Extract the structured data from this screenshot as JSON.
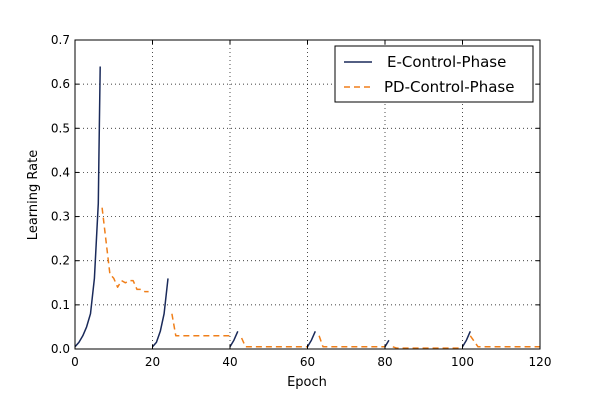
{
  "chart_data": {
    "type": "line",
    "title": "",
    "xlabel": "Epoch",
    "ylabel": "Learning Rate",
    "xlim": [
      0,
      120
    ],
    "ylim": [
      0,
      0.7
    ],
    "xticks": [
      0,
      20,
      40,
      60,
      80,
      100,
      120
    ],
    "yticks": [
      0.0,
      0.1,
      0.2,
      0.3,
      0.4,
      0.5,
      0.6,
      0.7
    ],
    "xtick_labels": [
      "0",
      "20",
      "40",
      "60",
      "80",
      "100",
      "120"
    ],
    "ytick_labels": [
      "0.0",
      "0.1",
      "0.2",
      "0.3",
      "0.4",
      "0.5",
      "0.6",
      "0.7"
    ],
    "grid": true,
    "legend_position": "top-right",
    "series": [
      {
        "name": "E-Control-Phase",
        "color": "#1a2a5a",
        "style": "solid",
        "segments": [
          [
            [
              0,
              0.005
            ],
            [
              1,
              0.015
            ],
            [
              2,
              0.03
            ],
            [
              3,
              0.05
            ],
            [
              4,
              0.08
            ],
            [
              5,
              0.16
            ],
            [
              6,
              0.33
            ],
            [
              6.2,
              0.45
            ],
            [
              6.5,
              0.64
            ]
          ],
          [
            [
              20,
              0.005
            ],
            [
              21,
              0.015
            ],
            [
              22,
              0.04
            ],
            [
              23,
              0.08
            ],
            [
              24,
              0.16
            ]
          ],
          [
            [
              40,
              0.005
            ],
            [
              41,
              0.02
            ],
            [
              42,
              0.04
            ]
          ],
          [
            [
              60,
              0.005
            ],
            [
              61,
              0.02
            ],
            [
              62,
              0.04
            ]
          ],
          [
            [
              80,
              0.005
            ],
            [
              81,
              0.02
            ]
          ],
          [
            [
              100,
              0.005
            ],
            [
              101,
              0.02
            ],
            [
              102,
              0.04
            ]
          ]
        ]
      },
      {
        "name": "PD-Control-Phase",
        "color": "#f07f1a",
        "style": "dashed",
        "segments": [
          [
            [
              7,
              0.32
            ],
            [
              9,
              0.17
            ],
            [
              10,
              0.16
            ],
            [
              11,
              0.14
            ],
            [
              12,
              0.155
            ],
            [
              13,
              0.15
            ],
            [
              14,
              0.155
            ],
            [
              15,
              0.155
            ],
            [
              16,
              0.135
            ],
            [
              17,
              0.135
            ],
            [
              18,
              0.13
            ],
            [
              19,
              0.13
            ]
          ],
          [
            [
              25,
              0.08
            ],
            [
              26,
              0.03
            ],
            [
              30,
              0.03
            ],
            [
              35,
              0.03
            ],
            [
              40,
              0.03
            ]
          ],
          [
            [
              43,
              0.025
            ],
            [
              44,
              0.005
            ],
            [
              50,
              0.005
            ],
            [
              55,
              0.005
            ],
            [
              60,
              0.005
            ]
          ],
          [
            [
              63,
              0.03
            ],
            [
              64,
              0.005
            ],
            [
              70,
              0.005
            ],
            [
              75,
              0.005
            ],
            [
              80,
              0.005
            ]
          ],
          [
            [
              82,
              0.005
            ],
            [
              83,
              0.002
            ],
            [
              90,
              0.002
            ],
            [
              95,
              0.002
            ],
            [
              100,
              0.002
            ]
          ],
          [
            [
              102,
              0.03
            ],
            [
              104,
              0.005
            ],
            [
              110,
              0.005
            ],
            [
              115,
              0.005
            ],
            [
              120,
              0.005
            ]
          ]
        ]
      }
    ]
  }
}
